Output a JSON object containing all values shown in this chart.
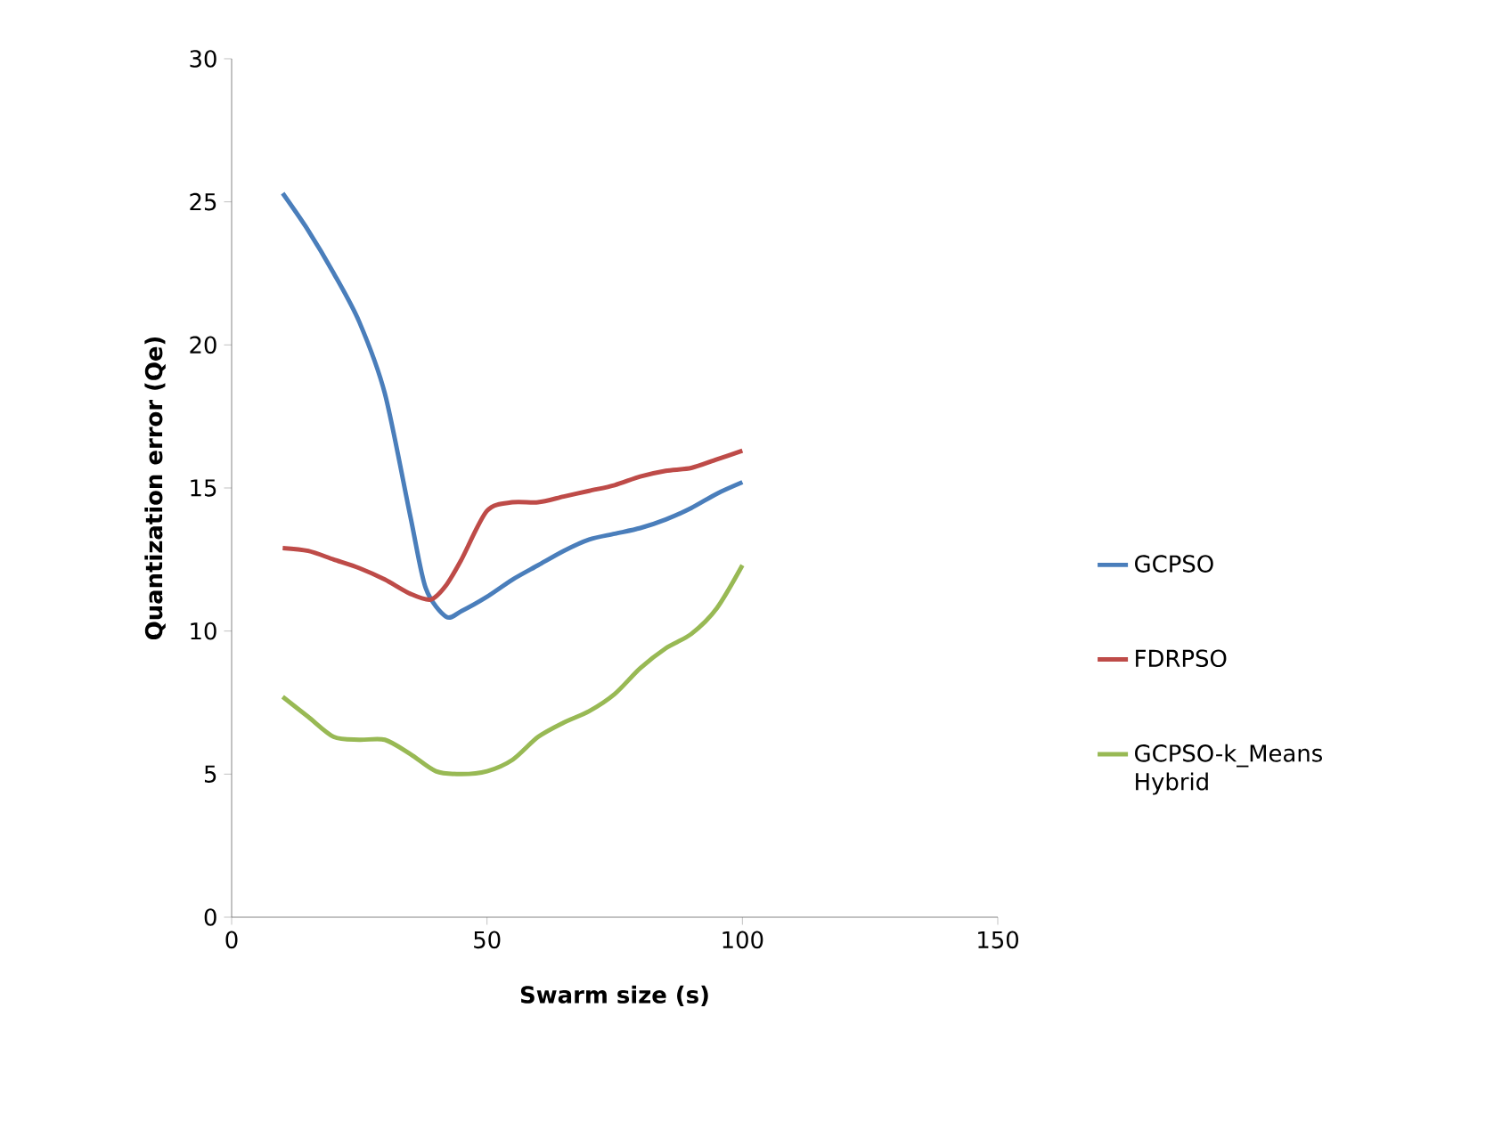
{
  "chart_data": {
    "type": "line",
    "xlabel": "Swarm size (s)",
    "ylabel": "Quantization error (Qe)",
    "xlim": [
      0,
      150
    ],
    "ylim": [
      0,
      30
    ],
    "xticks": [
      0,
      50,
      100,
      150
    ],
    "yticks": [
      0,
      5,
      10,
      15,
      20,
      25,
      30
    ],
    "grid": false,
    "legend": "right",
    "marker": "none",
    "line_style": "solid",
    "series": [
      {
        "name": "GCPSO",
        "color": "#4a7ebb",
        "x": [
          10,
          15,
          20,
          25,
          30,
          35,
          38,
          42,
          45,
          50,
          55,
          60,
          65,
          70,
          75,
          80,
          85,
          90,
          95,
          100
        ],
        "values": [
          25.3,
          24,
          22.5,
          20.8,
          18.3,
          14,
          11.5,
          10.5,
          10.7,
          11.2,
          11.8,
          12.3,
          12.8,
          13.2,
          13.4,
          13.6,
          13.9,
          14.3,
          14.8,
          15.2
        ]
      },
      {
        "name": "FDRPSO",
        "color": "#be4b48",
        "x": [
          10,
          15,
          20,
          25,
          30,
          35,
          39,
          42,
          45,
          50,
          55,
          60,
          65,
          70,
          75,
          80,
          85,
          90,
          95,
          100
        ],
        "values": [
          12.9,
          12.8,
          12.5,
          12.2,
          11.8,
          11.3,
          11.1,
          11.6,
          12.5,
          14.2,
          14.5,
          14.5,
          14.7,
          14.9,
          15.1,
          15.4,
          15.6,
          15.7,
          16,
          16.3
        ]
      },
      {
        "name": "GCPSO-k_Means Hybrid",
        "color": "#98b954",
        "x": [
          10,
          15,
          20,
          25,
          30,
          35,
          40,
          45,
          50,
          55,
          60,
          65,
          70,
          75,
          80,
          85,
          90,
          95,
          100
        ],
        "values": [
          7.7,
          7,
          6.3,
          6.2,
          6.2,
          5.7,
          5.1,
          5.0,
          5.1,
          5.5,
          6.3,
          6.8,
          7.2,
          7.8,
          8.7,
          9.4,
          9.9,
          10.8,
          12.3
        ]
      }
    ]
  }
}
